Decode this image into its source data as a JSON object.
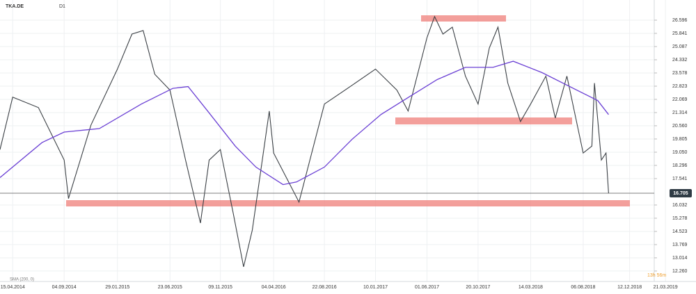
{
  "chart_data": {
    "type": "line",
    "title": "TKA.DE",
    "timeframe": "D1",
    "indicator_label": "SMA (200, 0)",
    "timer": "13h 56m",
    "current_price": {
      "value": 16.705,
      "label": "16.705"
    },
    "ylim": [
      11.86,
      27.35
    ],
    "yticks": [
      26.596,
      25.841,
      25.087,
      24.332,
      23.578,
      22.823,
      22.069,
      21.314,
      {
        "value": 20.56,
        "label": "20.560"
      },
      19.805,
      {
        "value": 19.05,
        "label": "19.050"
      },
      18.296,
      17.541,
      16.032,
      15.278,
      14.523,
      13.769,
      13.014,
      {
        "value": 12.26,
        "label": "12.260"
      }
    ],
    "xlim": [
      "11.03.2014",
      "18.02.2019"
    ],
    "xticks": [
      "15.04.2014",
      "04.09.2014",
      "29.01.2015",
      "23.06.2015",
      "09.11.2015",
      "04.04.2016",
      "22.08.2016",
      "10.01.2017",
      "01.06.2017",
      "20.10.2017",
      "14.03.2018",
      "06.08.2018",
      "12.12.2018",
      "21.03.2019"
    ],
    "grid": true,
    "series": [
      {
        "name": "TKA.DE",
        "color": "#3a3f44",
        "x": [
          "11.03.2014",
          "15.04.2014",
          "25.06.2014",
          "04.09.2014",
          "16.09.2014",
          "17.11.2014",
          "29.01.2015",
          "10.03.2015",
          "10.04.2015",
          "12.05.2015",
          "23.06.2015",
          "05.08.2015",
          "15.09.2015",
          "09.10.2015",
          "09.11.2015",
          "15.12.2015",
          "12.01.2016",
          "05.02.2016",
          "23.03.2016",
          "04.04.2016",
          "13.06.2016",
          "22.08.2016",
          "01.11.2016",
          "10.01.2017",
          "10.03.2017",
          "10.04.2017",
          "01.06.2017",
          "22.06.2017",
          "15.07.2017",
          "10.08.2017",
          "15.09.2017",
          "20.10.2017",
          "20.11.2017",
          "14.12.2017",
          "10.01.2018",
          "14.02.2018",
          "14.03.2018",
          "25.04.2018",
          "21.05.2018",
          "22.06.2018",
          "06.08.2018",
          "30.08.2018",
          "06.09.2018",
          "25.09.2018",
          "08.10.2018",
          "15.10.2018"
        ],
        "values": [
          19.2,
          22.2,
          21.6,
          18.6,
          16.4,
          20.6,
          23.8,
          25.8,
          26.0,
          23.5,
          22.6,
          18.6,
          15.0,
          18.6,
          19.2,
          15.5,
          12.5,
          14.6,
          21.4,
          19.0,
          16.2,
          21.8,
          22.8,
          23.8,
          22.6,
          21.4,
          25.6,
          26.8,
          25.8,
          26.2,
          23.4,
          21.8,
          25.0,
          26.2,
          23.0,
          20.8,
          21.8,
          23.4,
          21.0,
          23.4,
          19.0,
          19.4,
          23.0,
          18.6,
          19.0,
          16.7
        ]
      },
      {
        "name": "SMA",
        "color": "#6a3fd4",
        "x": [
          "11.03.2014",
          "05.07.2014",
          "04.09.2014",
          "10.12.2014",
          "05.04.2015",
          "01.07.2015",
          "12.08.2015",
          "05.10.2015",
          "20.12.2015",
          "15.02.2016",
          "30.04.2016",
          "06.06.2016",
          "22.08.2016",
          "07.11.2016",
          "25.01.2017",
          "12.04.2017",
          "29.06.2017",
          "15.09.2017",
          "30.11.2017",
          "25.01.2018",
          "14.04.2018",
          "30.06.2018",
          "15.09.2018",
          "15.10.2018"
        ],
        "values": [
          17.6,
          19.6,
          20.2,
          20.4,
          21.8,
          22.7,
          22.8,
          21.4,
          19.4,
          18.2,
          17.2,
          17.35,
          18.2,
          19.8,
          21.2,
          22.2,
          23.2,
          23.9,
          23.9,
          24.25,
          23.6,
          22.8,
          22.0,
          21.2
        ]
      }
    ]
  }
}
